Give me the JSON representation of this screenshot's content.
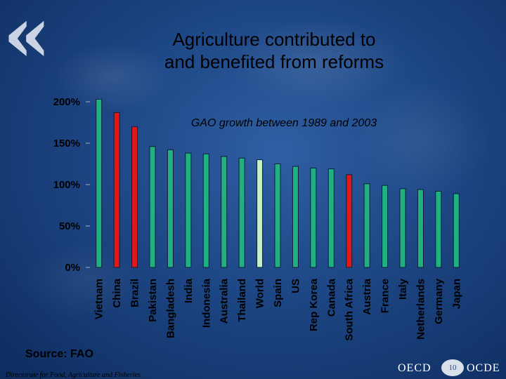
{
  "slide": {
    "title_line1": "Agriculture contributed to",
    "title_line2": "and benefited from reforms",
    "source": "Source: FAO",
    "footer": "Directorate for Food, Agriculture and Fisheries",
    "logo_left": "OECD",
    "logo_right": "OCDE",
    "page_number": "10",
    "quote_mark": "«"
  },
  "colors": {
    "bar_default": "#21b07f",
    "bar_highlight": "#e01818",
    "bar_world": "#c8f0c8"
  },
  "chart_data": {
    "type": "bar",
    "title": "GAO growth between 1989 and 2003",
    "xlabel": "",
    "ylabel": "",
    "ylim": [
      0,
      200
    ],
    "yticks": [
      "0%",
      "50%",
      "100%",
      "150%",
      "200%"
    ],
    "ytick_values": [
      0,
      50,
      100,
      150,
      200
    ],
    "grid": false,
    "categories": [
      "Vietnam",
      "China",
      "Brazil",
      "Pakistan",
      "Bangladesh",
      "India",
      "Indonesia",
      "Australia",
      "Thailand",
      "World",
      "Spain",
      "US",
      "Rep Korea",
      "Canada",
      "South Africa",
      "Austria",
      "France",
      "Italy",
      "Netherlands",
      "Germany",
      "Japan"
    ],
    "values": [
      203,
      187,
      170,
      146,
      142,
      138,
      137,
      134,
      132,
      130,
      125,
      122,
      120,
      119,
      112,
      101,
      99,
      95,
      94,
      92,
      89
    ],
    "highlight": [
      "default",
      "highlight",
      "highlight",
      "default",
      "default",
      "default",
      "default",
      "default",
      "default",
      "world",
      "default",
      "default",
      "default",
      "default",
      "highlight",
      "default",
      "default",
      "default",
      "default",
      "default",
      "default"
    ]
  }
}
